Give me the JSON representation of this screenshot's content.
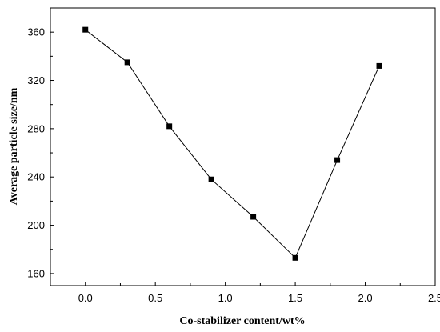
{
  "chart_data": {
    "type": "line",
    "title": "",
    "xlabel": "Co-stabilizer content/wt%",
    "ylabel": "Average particle size/nm",
    "xlim": [
      -0.25,
      2.5
    ],
    "ylim": [
      150,
      380
    ],
    "xticks": [
      0.0,
      0.5,
      1.0,
      1.5,
      2.0,
      2.5
    ],
    "xtick_labels": [
      "0.0",
      "0.5",
      "1.0",
      "1.5",
      "2.0",
      "2.5"
    ],
    "yticks": [
      160,
      200,
      240,
      280,
      320,
      360
    ],
    "ytick_labels": [
      "160",
      "200",
      "240",
      "280",
      "320",
      "360"
    ],
    "grid": false,
    "legend": "none",
    "series": [
      {
        "marker": "square",
        "color": "#000000",
        "x": [
          0.0,
          0.3,
          0.6,
          0.9,
          1.2,
          1.5,
          1.8,
          2.1
        ],
        "y": [
          362,
          335,
          282,
          238,
          207,
          173,
          254,
          332
        ]
      }
    ]
  }
}
